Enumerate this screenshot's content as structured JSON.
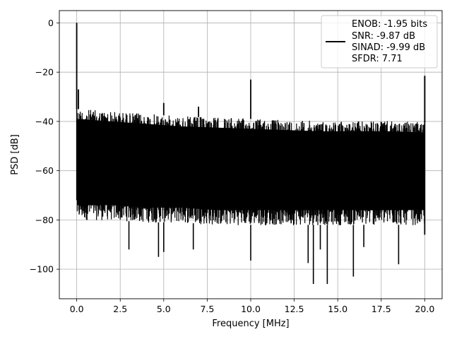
{
  "chart_data": {
    "type": "line",
    "xlabel": "Frequency [MHz]",
    "ylabel": "PSD [dB]",
    "xlim": [
      -1,
      21
    ],
    "ylim": [
      -112,
      5
    ],
    "grid": true,
    "legend_position": "top-right",
    "x_ticks": [
      0,
      2.5,
      5,
      7.5,
      10,
      12.5,
      15,
      17.5,
      20
    ],
    "x_tick_labels": [
      "0.0",
      "2.5",
      "5.0",
      "7.5",
      "10.0",
      "12.5",
      "15.0",
      "17.5",
      "20.0"
    ],
    "y_ticks": [
      0,
      -20,
      -40,
      -60,
      -80,
      -100
    ],
    "y_tick_labels": [
      "0",
      "−20",
      "−40",
      "−60",
      "−80",
      "−100"
    ],
    "legend": {
      "lines": [
        "ENOB: -1.95 bits",
        "SNR: -9.87 dB",
        "SINAD: -9.99 dB",
        "SFDR: 7.71"
      ]
    },
    "series_color": "#000000",
    "noise_floor_upper_envelope": {
      "x": [
        0.1,
        2,
        4,
        6,
        8,
        10,
        12,
        14,
        16,
        18,
        20
      ],
      "values": [
        -35,
        -36,
        -37,
        -38,
        -38.5,
        -39,
        -39.5,
        -40,
        -40,
        -40,
        -40.5
      ]
    },
    "noise_floor_lower_envelope": {
      "x": [
        0.1,
        2,
        4,
        6,
        8,
        10,
        12,
        14,
        16,
        18,
        20
      ],
      "values": [
        -80,
        -80,
        -81,
        -81,
        -82,
        -82,
        -82,
        -82,
        -82,
        -82,
        -82
      ]
    },
    "peaks": [
      {
        "x": 0.0,
        "y": 0
      },
      {
        "x": 0.1,
        "y": -27
      },
      {
        "x": 5.0,
        "y": -32.5
      },
      {
        "x": 7.0,
        "y": -34
      },
      {
        "x": 10.0,
        "y": -23
      },
      {
        "x": 20.0,
        "y": -21.5
      }
    ],
    "dips": [
      {
        "x": 4.7,
        "y": -95
      },
      {
        "x": 5.0,
        "y": -93
      },
      {
        "x": 6.7,
        "y": -92
      },
      {
        "x": 10.0,
        "y": -96.5
      },
      {
        "x": 13.6,
        "y": -106
      },
      {
        "x": 14.4,
        "y": -106
      },
      {
        "x": 15.9,
        "y": -103
      },
      {
        "x": 13.3,
        "y": -97.5
      },
      {
        "x": 18.5,
        "y": -98
      },
      {
        "x": 3.0,
        "y": -92
      },
      {
        "x": 14.0,
        "y": -92
      },
      {
        "x": 16.5,
        "y": -91
      }
    ]
  }
}
